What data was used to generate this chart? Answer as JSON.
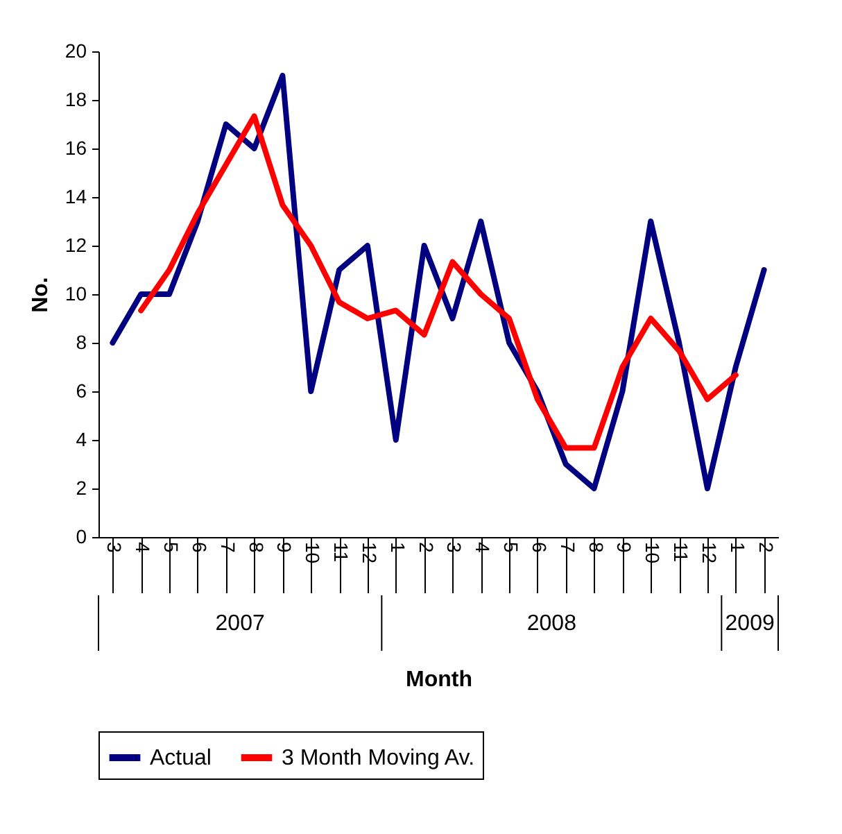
{
  "chart_data": {
    "type": "line",
    "xlabel": "Month",
    "ylabel": "No.",
    "categories": [
      "3",
      "4",
      "5",
      "6",
      "7",
      "8",
      "9",
      "10",
      "11",
      "12",
      "1",
      "2",
      "3",
      "4",
      "5",
      "6",
      "7",
      "8",
      "9",
      "10",
      "11",
      "12",
      "1",
      "2"
    ],
    "series": [
      {
        "name": "Actual",
        "color": "#000080",
        "values": [
          8,
          10,
          10,
          13,
          17,
          16,
          19,
          6,
          11,
          12,
          4,
          12,
          9,
          13,
          8,
          6,
          3,
          2,
          6,
          13,
          8,
          2,
          7,
          11
        ]
      },
      {
        "name": "3 Month Moving Av.",
        "color": "#ff0000",
        "values": [
          null,
          9.33,
          11,
          13.33,
          15.33,
          17.33,
          13.67,
          12,
          9.67,
          9,
          9.33,
          8.33,
          11.33,
          10,
          9,
          5.67,
          3.67,
          3.67,
          7,
          9,
          7.67,
          5.67,
          6.67,
          null
        ]
      }
    ],
    "annotations": [
      "2007",
      "2008",
      "2009"
    ],
    "ylim": [
      0,
      20
    ],
    "yticks": [
      0,
      2,
      4,
      6,
      8,
      10,
      12,
      14,
      16,
      18,
      20
    ],
    "grid": false,
    "legend": "bottom",
    "marker": "none",
    "line_style": "solid"
  }
}
